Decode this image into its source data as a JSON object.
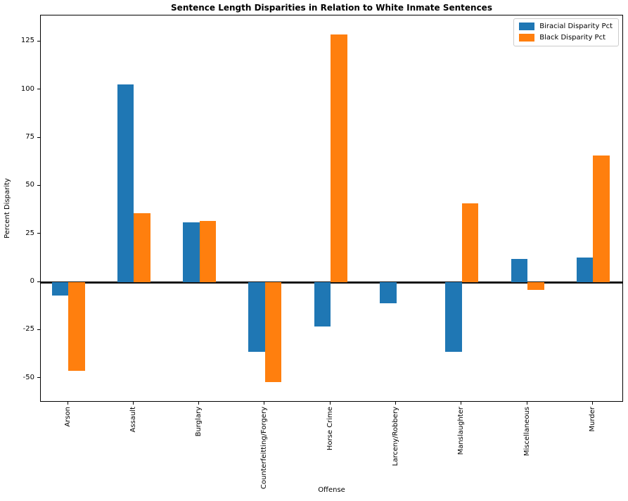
{
  "chart_data": {
    "type": "bar",
    "title": "Sentence Length Disparities in Relation to White Inmate Sentences",
    "xlabel": "Offense",
    "ylabel": "Percent Disparity",
    "categories": [
      "Arson",
      "Assault",
      "Burglary",
      "Counterfeitting/Forgery",
      "Horse Crime",
      "Larceny/Robbery",
      "Manslaughter",
      "Miscellaneous",
      "Murder"
    ],
    "series": [
      {
        "name": "Biracial Disparity Pct",
        "color": "#1f77b4",
        "values": [
          -7,
          103,
          31,
          -36,
          -23,
          -11,
          -36,
          12,
          13
        ]
      },
      {
        "name": "Black Disparity Pct",
        "color": "#ff7f0e",
        "values": [
          -46,
          36,
          32,
          -52,
          129,
          0,
          41,
          -4,
          66
        ]
      }
    ],
    "yticks": [
      -50,
      -25,
      0,
      25,
      50,
      75,
      100,
      125
    ],
    "ylim": [
      -62.5,
      138.7
    ],
    "grid": false,
    "zero_line": true,
    "legend_position": "upper right",
    "colors": {
      "axis": "#000000",
      "zero_line": "#161616",
      "background": "#ffffff",
      "legend_border": "#cccccc"
    }
  }
}
